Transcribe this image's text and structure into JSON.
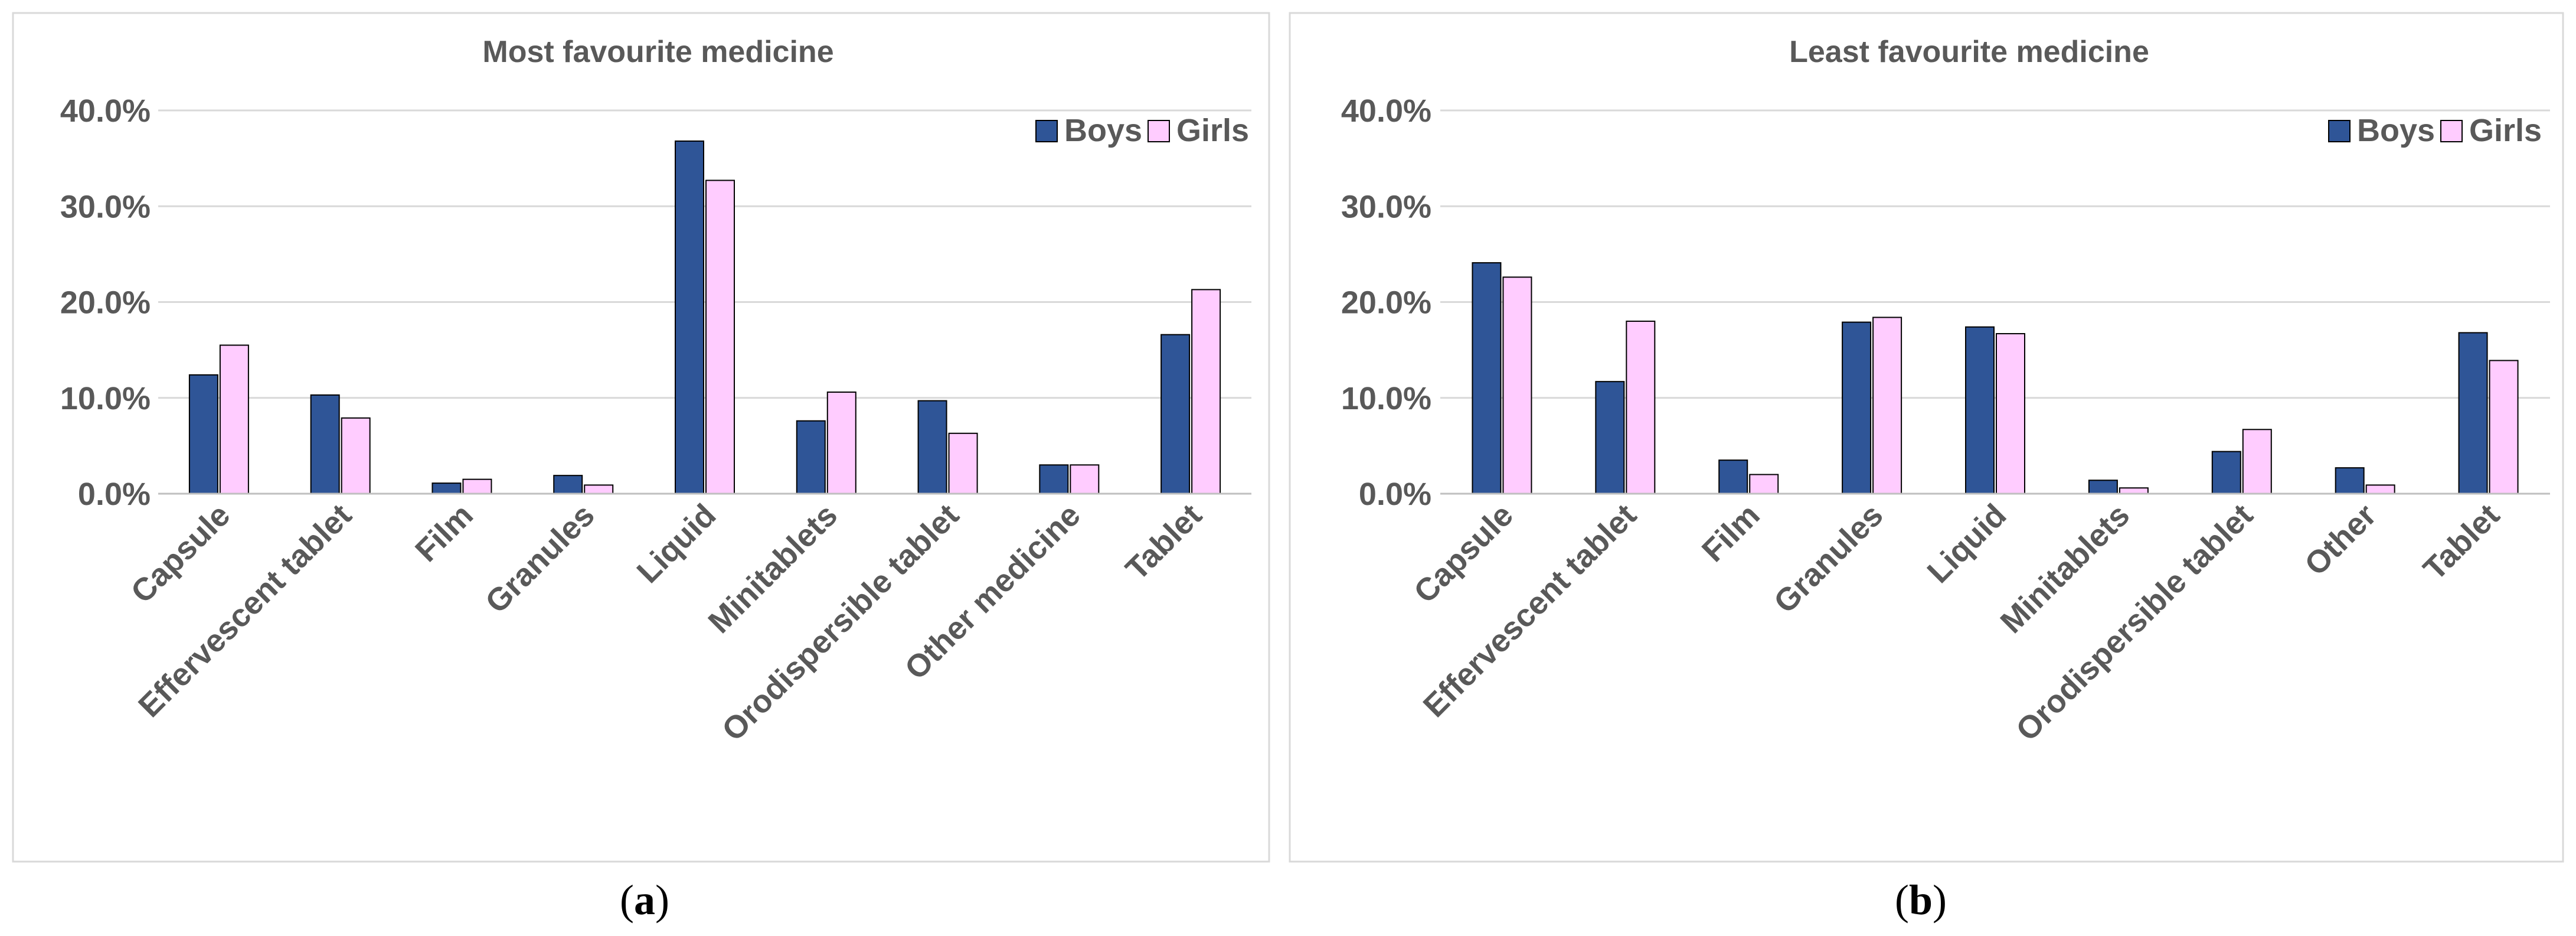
{
  "colors": {
    "boys": "#2F5597",
    "girls": "#FFCCFF",
    "bar_stroke": "#000000",
    "gridline": "#D9D9D9",
    "axis": "#BFBFBF",
    "frame": "#D9D9D9",
    "text": "#595959"
  },
  "chart_data": [
    {
      "type": "bar",
      "title": "Most favourite medicine",
      "caption_open": "(",
      "caption_letter": "a",
      "caption_close": ")",
      "categories": [
        "Capsule",
        "Effervescent tablet",
        "Film",
        "Granules",
        "Liquid",
        "Minitablets",
        "Orodispersible tablet",
        "Other medicine",
        "Tablet"
      ],
      "series": [
        {
          "name": "Boys",
          "values": [
            12.4,
            10.3,
            1.1,
            1.9,
            36.8,
            7.6,
            9.7,
            3.0,
            16.6
          ]
        },
        {
          "name": "Girls",
          "values": [
            15.5,
            7.9,
            1.5,
            0.9,
            32.7,
            10.6,
            6.3,
            3.0,
            21.3
          ]
        }
      ],
      "yticks": [
        "0.0%",
        "10.0%",
        "20.0%",
        "30.0%",
        "40.0%"
      ],
      "ylim": [
        0,
        40
      ],
      "xlabel": "",
      "ylabel": "",
      "legend_position": "top-right",
      "grid": true
    },
    {
      "type": "bar",
      "title": "Least favourite medicine",
      "caption_open": "(",
      "caption_letter": "b",
      "caption_close": ")",
      "categories": [
        "Capsule",
        "Effervescent tablet",
        "Film",
        "Granules",
        "Liquid",
        "Minitablets",
        "Orodispersible tablet",
        "Other",
        "Tablet"
      ],
      "series": [
        {
          "name": "Boys",
          "values": [
            24.1,
            11.7,
            3.5,
            17.9,
            17.4,
            1.4,
            4.4,
            2.7,
            16.8
          ]
        },
        {
          "name": "Girls",
          "values": [
            22.6,
            18.0,
            2.0,
            18.4,
            16.7,
            0.6,
            6.7,
            0.9,
            13.9
          ]
        }
      ],
      "yticks": [
        "0.0%",
        "10.0%",
        "20.0%",
        "30.0%",
        "40.0%"
      ],
      "ylim": [
        0,
        40
      ],
      "xlabel": "",
      "ylabel": "",
      "legend_position": "top-right",
      "grid": true
    }
  ]
}
